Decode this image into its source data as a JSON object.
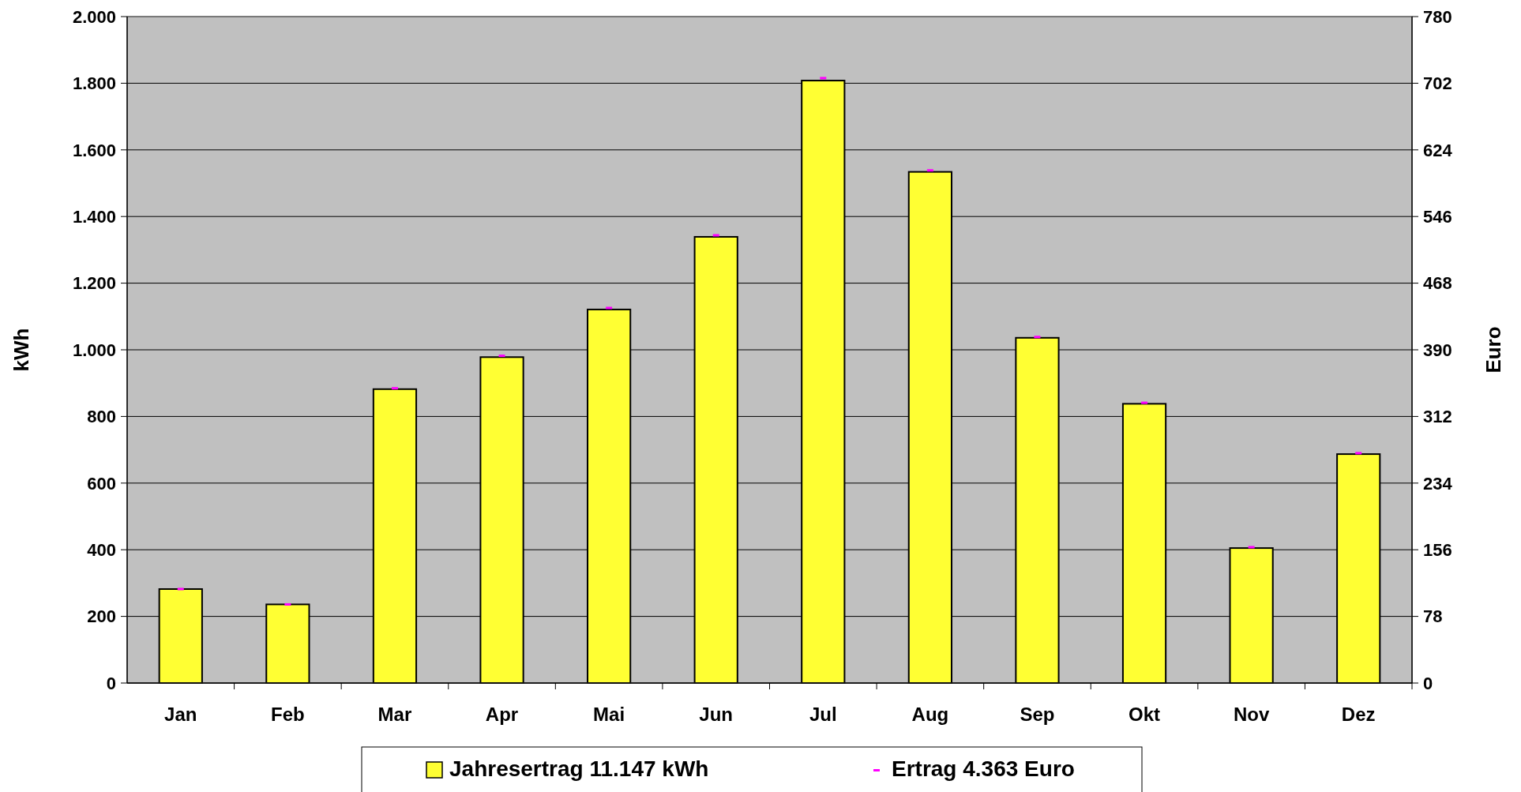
{
  "chart_data": {
    "type": "bar",
    "ylabel": "kWh",
    "y2label": "Euro",
    "categories": [
      "Jan",
      "Feb",
      "Mar",
      "Apr",
      "Mai",
      "Jun",
      "Jul",
      "Aug",
      "Sep",
      "Okt",
      "Nov",
      "Dez"
    ],
    "series": [
      {
        "name": "Jahresertrag  11.147 kWh",
        "color": "#ffff33",
        "values": [
          282,
          236,
          882,
          978,
          1121,
          1339,
          1808,
          1534,
          1036,
          838,
          405,
          687
        ]
      },
      {
        "name": "Ertrag 4.363 Euro",
        "type": "scatter",
        "axis": "y2",
        "color": "#ff00ff",
        "values": [
          110,
          92,
          345,
          383,
          439,
          524,
          708,
          600,
          405,
          328,
          159,
          269
        ]
      }
    ],
    "ylim": [
      0,
      2000
    ],
    "yticks": [
      0,
      200,
      400,
      600,
      800,
      {
        "value": 1000,
        "label": "1.000"
      },
      {
        "value": 1200,
        "label": "1.200"
      },
      {
        "value": 1400,
        "label": "1.400"
      },
      {
        "value": 1600,
        "label": "1.600"
      },
      {
        "value": 1800,
        "label": "1.800"
      },
      {
        "value": 2000,
        "label": "2.000"
      }
    ],
    "y2lim": [
      0,
      780
    ],
    "y2ticks": [
      0,
      78,
      156,
      234,
      312,
      390,
      468,
      546,
      624,
      702,
      780
    ],
    "grid": "y",
    "legend": "bottom"
  }
}
